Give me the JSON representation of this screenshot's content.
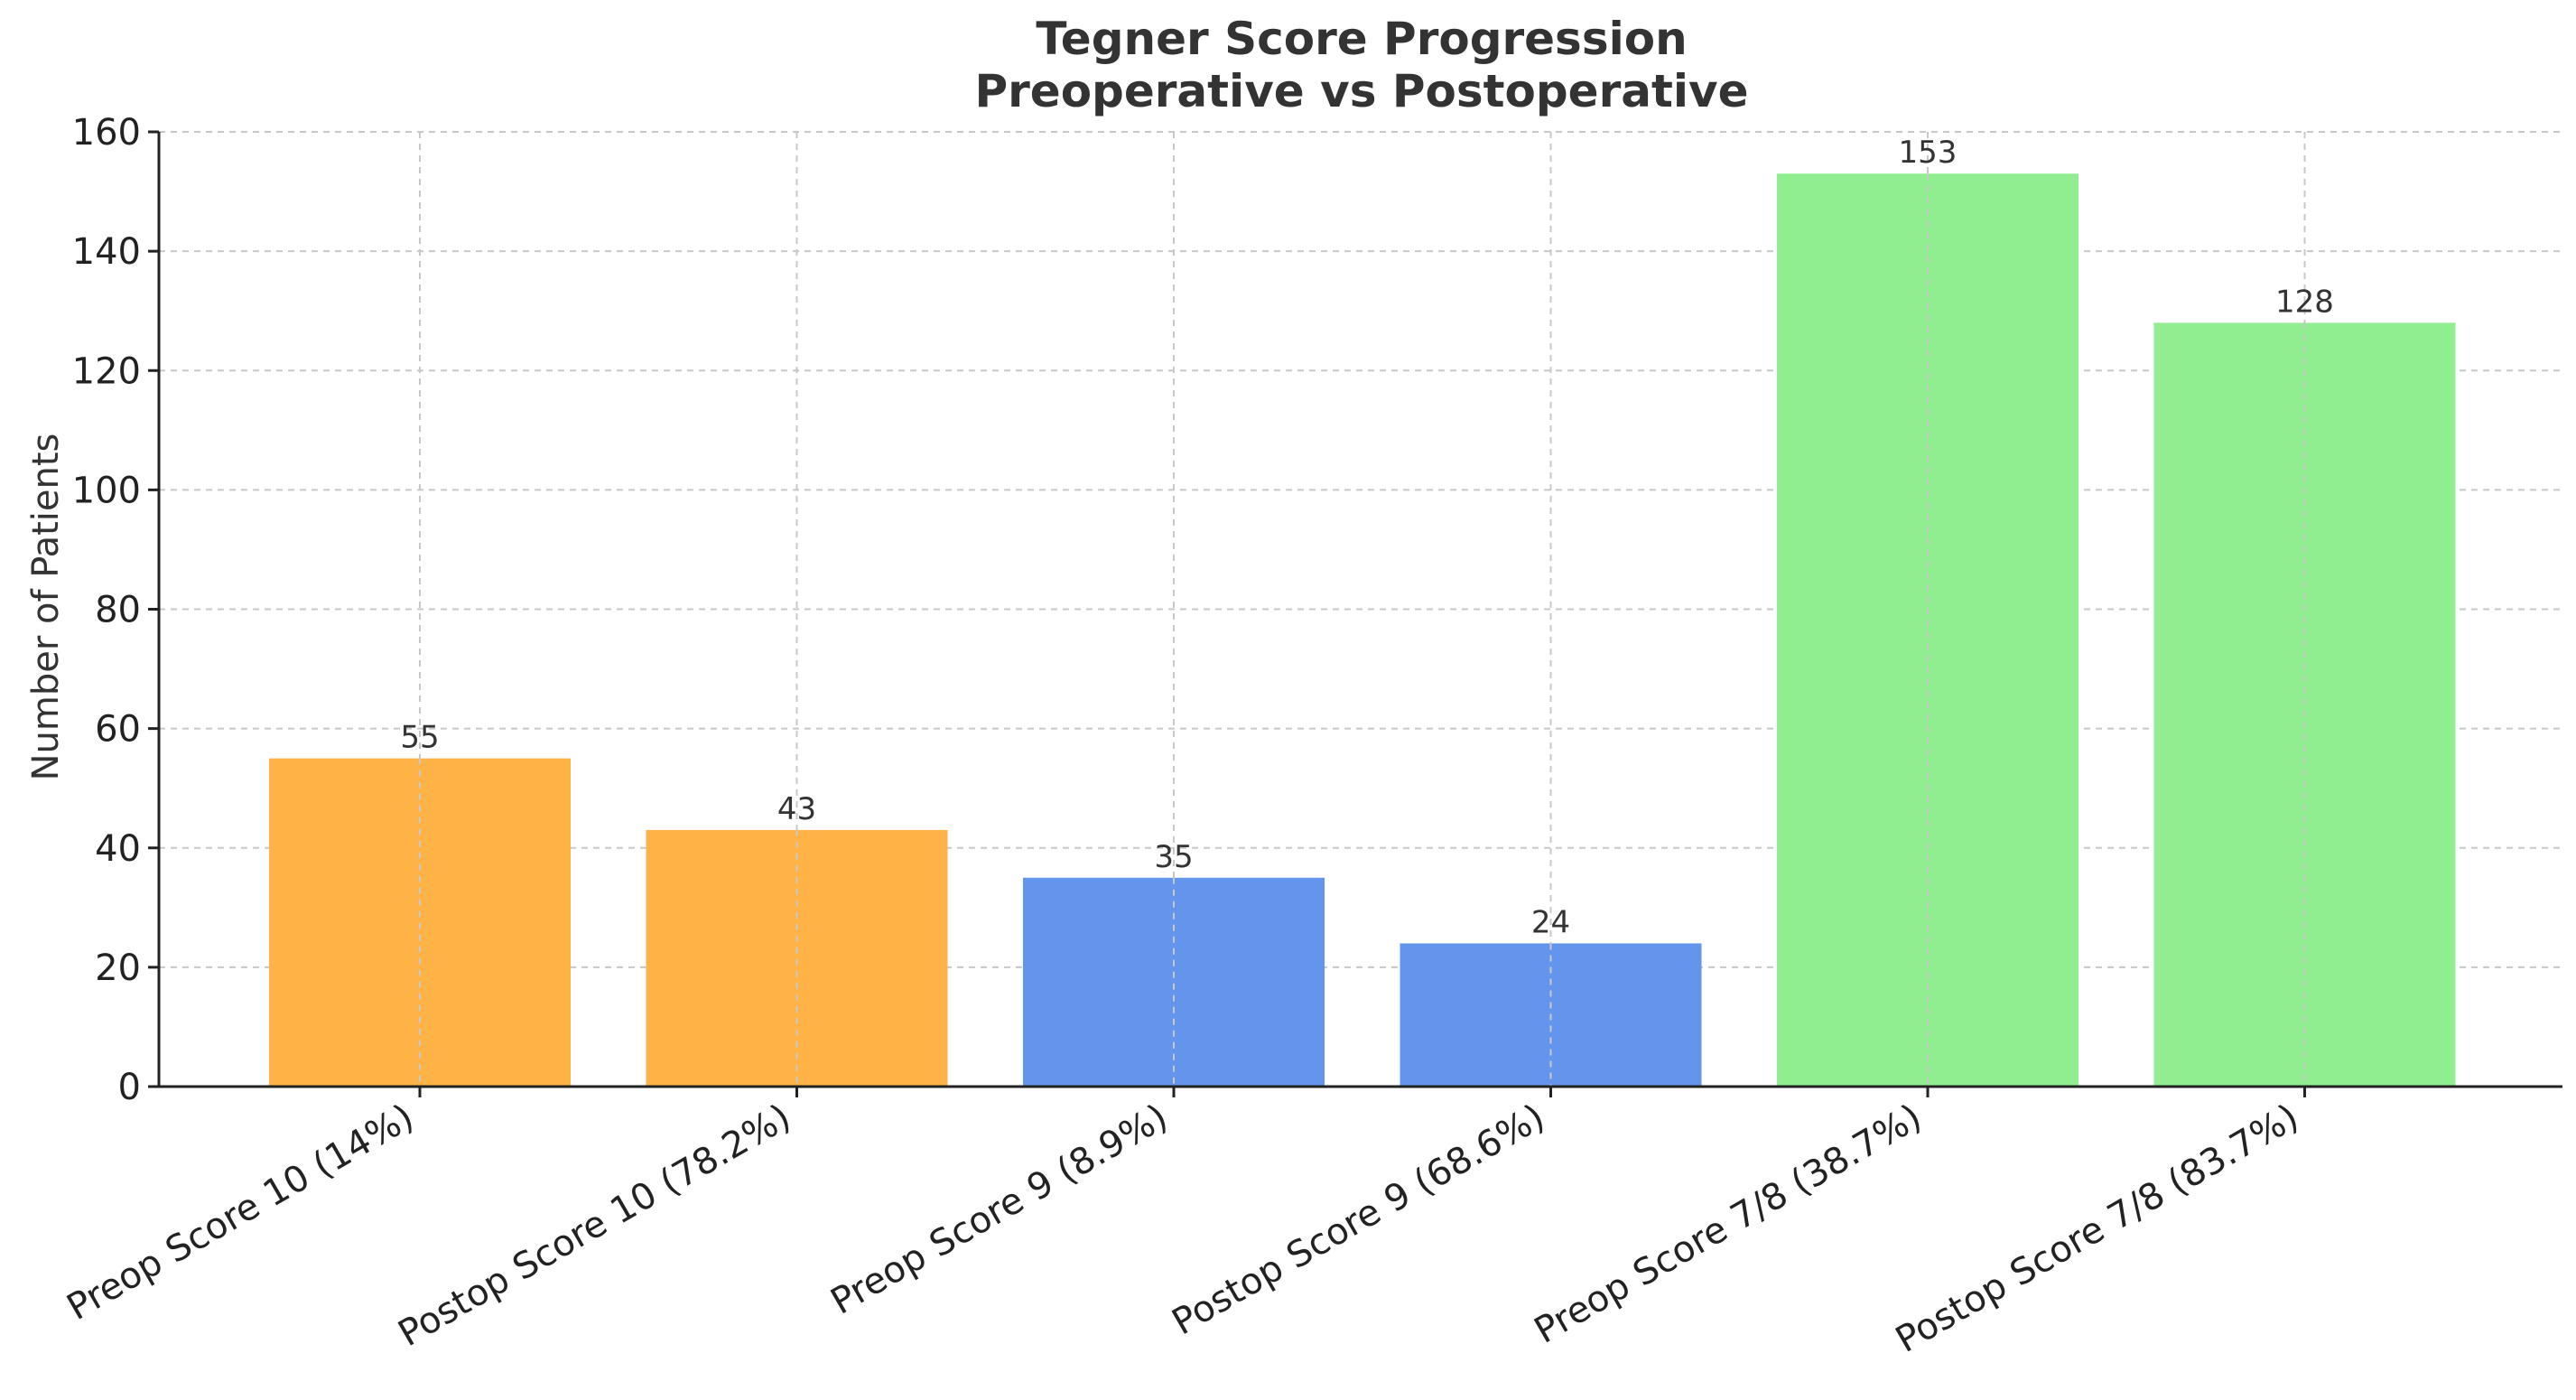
{
  "chart_data": {
    "type": "bar",
    "title": "Tegner Score Progression",
    "subtitle": "Preoperative vs Postoperative",
    "xlabel": "",
    "ylabel": "Number of Patients",
    "ylim": [
      0,
      160
    ],
    "yticks": [
      "0",
      "20",
      "40",
      "60",
      "80",
      "100",
      "120",
      "140",
      "160"
    ],
    "grid": true,
    "categories": [
      "Preop Score 10 (14%)",
      "Postop Score 10 (78.2%)",
      "Preop Score 9 (8.9%)",
      "Postop Score 9 (68.6%)",
      "Preop Score 7/8 (38.7%)",
      "Postop Score 7/8 (83.7%)"
    ],
    "values": [
      55,
      43,
      35,
      24,
      153,
      128
    ],
    "data_labels": [
      "55",
      "43",
      "35",
      "24",
      "153",
      "128"
    ],
    "colors": [
      "#ffb347",
      "#ffb347",
      "#6495ed",
      "#6495ed",
      "#90ee90",
      "#90ee90"
    ]
  }
}
